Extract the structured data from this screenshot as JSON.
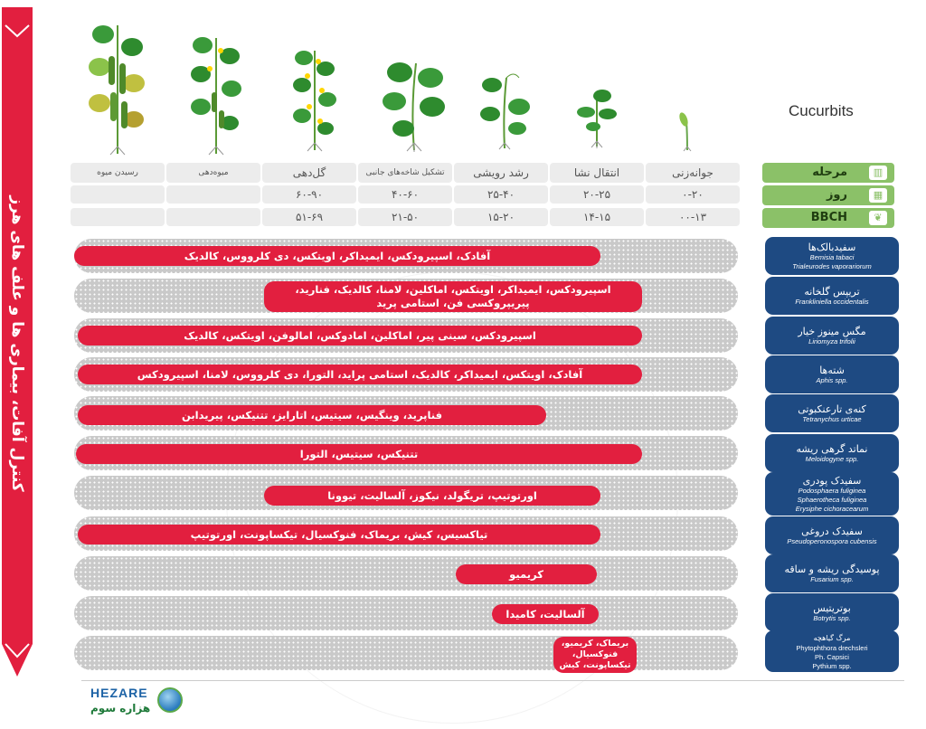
{
  "ribbon": {
    "title": "کنترل آفات، بیماری ها و علف های هرز",
    "color": "#e21f3f"
  },
  "crop": {
    "name": "Cucurbits"
  },
  "header_labels": {
    "stage": "مرحله",
    "day": "روز",
    "bbch": "BBCH"
  },
  "stages": [
    {
      "name": "جوانه‌زنی",
      "day": "۰-۲۰",
      "bbch": "۰۰-۱۳"
    },
    {
      "name": "انتقال نشا",
      "day": "۲۰-۲۵",
      "bbch": "۱۴-۱۵"
    },
    {
      "name": "رشد رویشی",
      "day": "۲۵-۴۰",
      "bbch": "۱۵-۲۰"
    },
    {
      "name": "تشکیل شاخه‌های جانبی",
      "day": "۴۰-۶۰",
      "bbch": "۲۱-۵۰"
    },
    {
      "name": "گل‌دهی",
      "day": "۶۰-۹۰",
      "bbch": "۵۱-۶۹"
    },
    {
      "name": "میوه‌دهی",
      "day": "",
      "bbch": ""
    },
    {
      "name": "رسیدن میوه",
      "day": "",
      "bbch": ""
    }
  ],
  "rows": [
    {
      "pest": "سفیدبالک‌ها",
      "sci": [
        "Bemisia tabaci",
        "Trialeurodes vaporariorum"
      ],
      "products": "آفادک، اسپیرودکس، ایمیداکر، اویتکس، دی کلرووس، کالدیک"
    },
    {
      "pest": "تریپس گلخانه",
      "sci": [
        "Frankliniella occidentalis"
      ],
      "products": "اسپیرودکس، ایمیداکر، اویتکس، اماکلین، لامنا، کالدیک، فنارید، پیریپروکسی فن، استامی پرید"
    },
    {
      "pest": "مگس مینوز خیار",
      "sci": [
        "Liriomyza trifolii"
      ],
      "products": "اسپیرودکس، سینی پیر، اماکلین، امادوکس، امالوفن، اویتکس، کالدیک"
    },
    {
      "pest": "شته‌ها",
      "sci": [
        "Aphis spp."
      ],
      "products": "آفادک، اویتکس، ایمیداکر، کالدیک، استامی پراید، التورا، دی کلرووس، لامنا، اسپیرودکس"
    },
    {
      "pest": "کنه‌ی تارعنکبوتی",
      "sci": [
        "Tetranychus urticae"
      ],
      "products": "فناپرید، وینگیس، سیتیس، اتارایز، تتنیکس، پیریدابن"
    },
    {
      "pest": "نماتد گرهی ریشه",
      "sci": [
        "Meloidogyne spp."
      ],
      "products": "تتنیکس، سیتیس، التورا"
    },
    {
      "pest": "سفیدک پودری",
      "sci": [
        "Podosphaera fuliginea",
        "Sphaerotheca fuliginea",
        "Erysiphe cichoracearum"
      ],
      "products": "اورتوتیپ، تریگولد، نیکوز، آلسالیت، تیوونا"
    },
    {
      "pest": "سفیدک دروغی",
      "sci": [
        "Pseudoperonospora cubensis"
      ],
      "products": "تیاکسیس، کیش، بریماک، فنوکسیال، تیکساپونت، اورتوتیپ"
    },
    {
      "pest": "پوسیدگی ریشه و ساقه",
      "sci": [
        "Fusarium spp."
      ],
      "products": "کریمیو"
    },
    {
      "pest": "بوتریتیس",
      "sci": [
        "Botrytis spp."
      ],
      "products": "آلسالیت، کامیدا"
    },
    {
      "pest": "مرگ گیاهچه",
      "sci": [
        "Phytophthora drechsleri",
        "Ph. Capsici",
        "Pythium spp."
      ],
      "products": "بریماک، کریمیو، فنوکسیال، تیکساپونت، کیش"
    }
  ],
  "logo": {
    "en": "HEZARE",
    "fa": "هزاره سوم"
  }
}
